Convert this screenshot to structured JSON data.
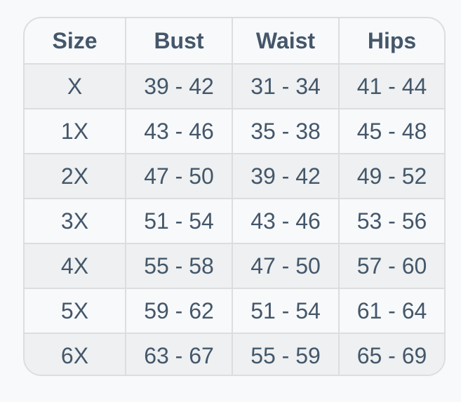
{
  "table": {
    "headers": [
      "Size",
      "Bust",
      "Waist",
      "Hips"
    ],
    "rows": [
      [
        "X",
        "39 - 42",
        "31 - 34",
        "41 - 44"
      ],
      [
        "1X",
        "43 - 46",
        "35 - 38",
        "45 - 48"
      ],
      [
        "2X",
        "47 - 50",
        "39 - 42",
        "49 - 52"
      ],
      [
        "3X",
        "51 - 54",
        "43 - 46",
        "53 - 56"
      ],
      [
        "4X",
        "55 - 58",
        "47 - 50",
        "57 - 60"
      ],
      [
        "5X",
        "59 - 62",
        "51 - 54",
        "61 - 64"
      ],
      [
        "6X",
        "63 - 67",
        "55 - 59",
        "65 - 69"
      ]
    ]
  },
  "colors": {
    "text": "#44576a",
    "stripe": "#eef0f1",
    "border": "#dcdddf",
    "background": "#f8f9fb"
  }
}
